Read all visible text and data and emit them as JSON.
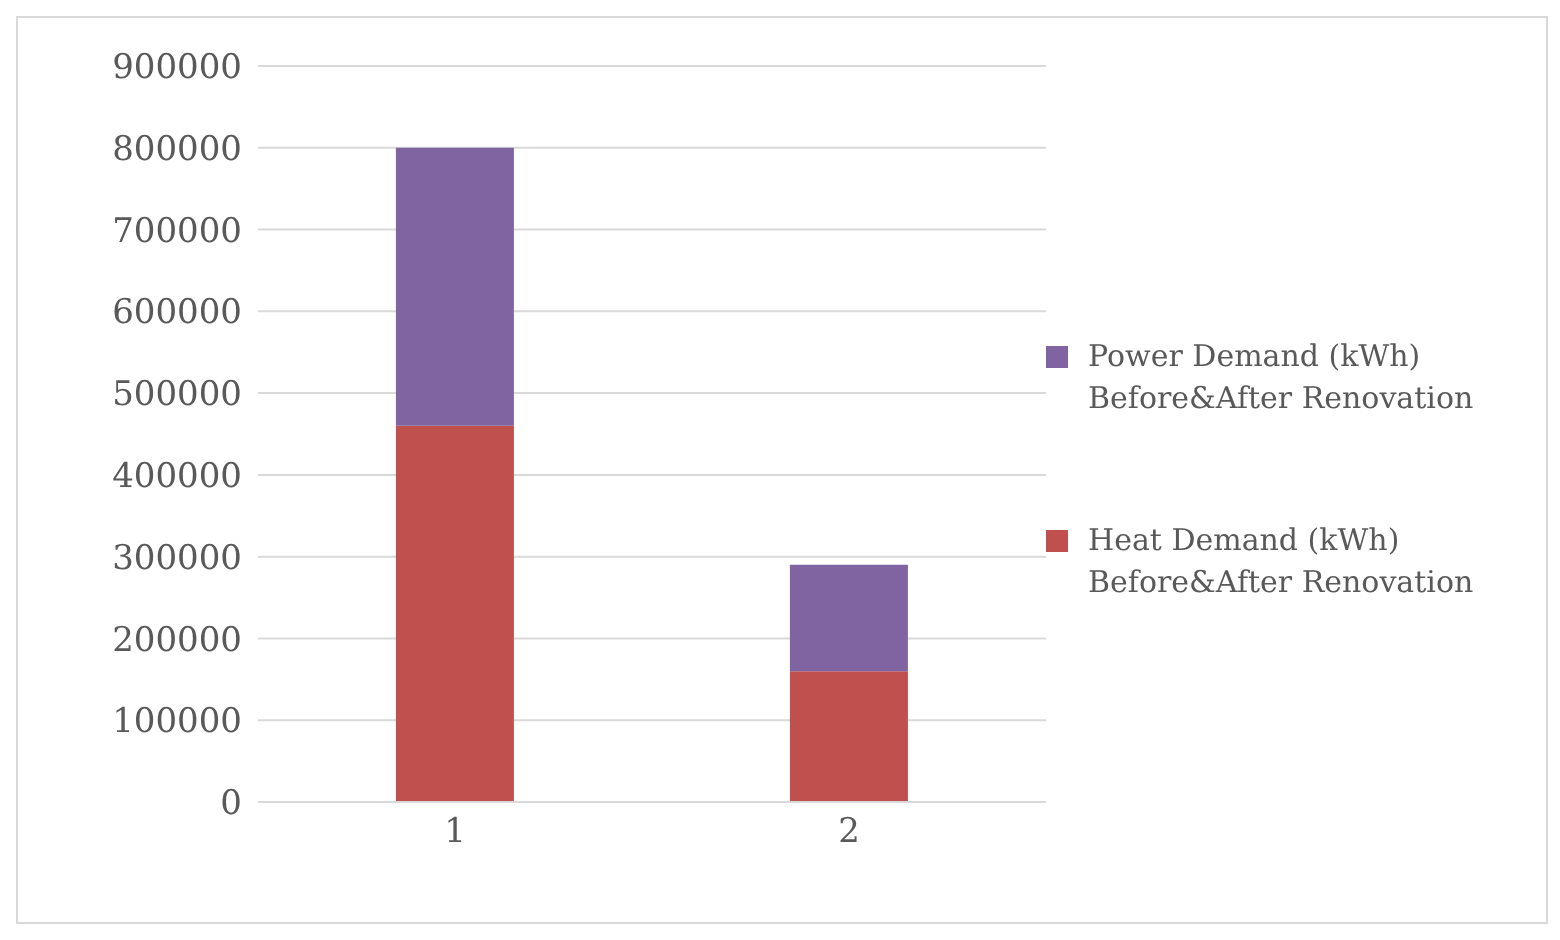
{
  "chart_data": {
    "type": "bar",
    "stacked": true,
    "categories": [
      "1",
      "2"
    ],
    "series": [
      {
        "name": "Heat Demand (kWh) Before&After Renovation",
        "color": "#c0504d",
        "values": [
          460000,
          160000
        ]
      },
      {
        "name": "Power Demand (kWh) Before&After Renovation",
        "color": "#8064a2",
        "values": [
          340000,
          130000
        ]
      }
    ],
    "ylim": [
      0,
      900000
    ],
    "yticks": [
      0,
      100000,
      200000,
      300000,
      400000,
      500000,
      600000,
      700000,
      800000,
      900000
    ],
    "grid": "y",
    "legend": "right"
  }
}
